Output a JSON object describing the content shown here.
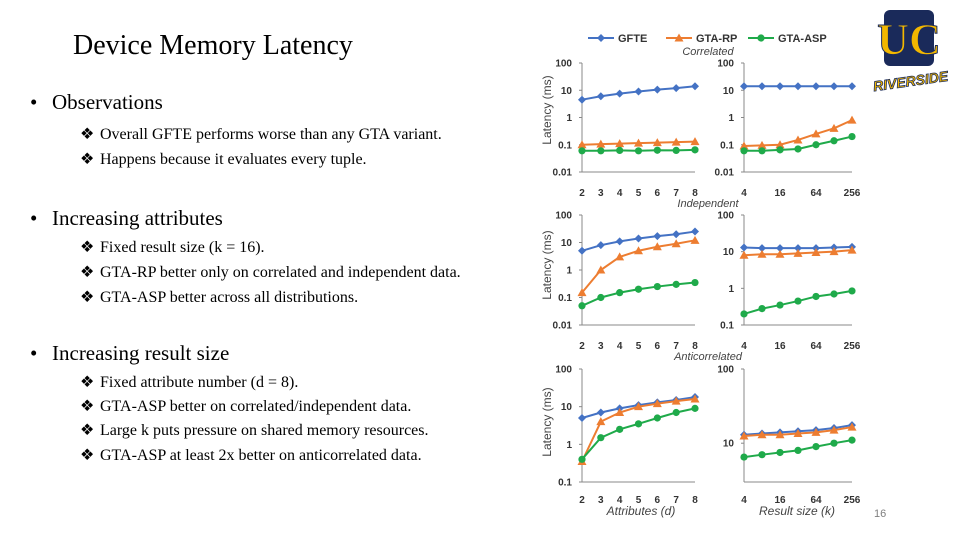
{
  "slide": {
    "title": "Device Memory Latency",
    "page_number": "16",
    "sections": [
      {
        "heading": "Observations",
        "items": [
          "Overall GFTE performs worse than any GTA variant.",
          "Happens because it evaluates every tuple."
        ]
      },
      {
        "heading": "Increasing attributes",
        "items": [
          "Fixed result size (k = 16).",
          "GTA-RP better only on correlated and independent data.",
          "GTA-ASP better across all distributions."
        ]
      },
      {
        "heading": "Increasing result size",
        "items": [
          "Fixed attribute number (d = 8).",
          "GTA-ASP better on correlated/independent data.",
          "Large k puts pressure on shared memory resources.",
          "GTA-ASP at least 2x better on anticorrelated data."
        ]
      }
    ]
  },
  "logo": {
    "letters": "UC",
    "text": "RIVERSIDE"
  },
  "colors": {
    "GFTE": "#4472c4",
    "GTA-RP": "#ed7d31",
    "GTA-ASP": "#1faa4a"
  },
  "chart_data": {
    "legend": [
      "GFTE",
      "GTA-RP",
      "GTA-ASP"
    ],
    "ylabel": "Latency (ms)",
    "row_labels": [
      "Correlated",
      "Independent",
      "Anticorrelated"
    ],
    "xlabel_left": "Attributes (d)",
    "xlabel_right": "Result size (k)",
    "left_x": [
      "2",
      "3",
      "4",
      "5",
      "6",
      "7",
      "8"
    ],
    "right_x": [
      "4",
      "8",
      "16",
      "32",
      "64",
      "128",
      "256"
    ],
    "right_ticks": [
      "4",
      "16",
      "64",
      "256"
    ],
    "charts": [
      {
        "id": "corr-attr",
        "type": "line",
        "yticks": [
          "100",
          "10",
          "1",
          "0.1",
          "0.01"
        ],
        "ylim": [
          0.01,
          100
        ],
        "xcats": "left",
        "series": [
          {
            "name": "GFTE",
            "values": [
              4.5,
              6,
              7.5,
              9,
              10.5,
              12,
              14
            ]
          },
          {
            "name": "GTA-RP",
            "values": [
              0.1,
              0.105,
              0.11,
              0.115,
              0.12,
              0.125,
              0.13
            ]
          },
          {
            "name": "GTA-ASP",
            "values": [
              0.06,
              0.06,
              0.062,
              0.06,
              0.063,
              0.062,
              0.065
            ]
          }
        ]
      },
      {
        "id": "corr-size",
        "type": "line",
        "yticks": [
          "100",
          "10",
          "1",
          "0.1",
          "0.01"
        ],
        "ylim": [
          0.01,
          100
        ],
        "xcats": "right",
        "series": [
          {
            "name": "GFTE",
            "values": [
              14,
              14,
              14,
              14,
              14,
              14,
              14
            ]
          },
          {
            "name": "GTA-RP",
            "values": [
              0.09,
              0.095,
              0.1,
              0.15,
              0.25,
              0.4,
              0.8
            ]
          },
          {
            "name": "GTA-ASP",
            "values": [
              0.06,
              0.06,
              0.065,
              0.07,
              0.1,
              0.14,
              0.2
            ]
          }
        ]
      },
      {
        "id": "ind-attr",
        "type": "line",
        "yticks": [
          "100",
          "10",
          "1",
          "0.1",
          "0.01"
        ],
        "ylim": [
          0.01,
          100
        ],
        "xcats": "left",
        "series": [
          {
            "name": "GFTE",
            "values": [
              5,
              8,
              11,
              14,
              17,
              20,
              25
            ]
          },
          {
            "name": "GTA-RP",
            "values": [
              0.15,
              1,
              3,
              5,
              7,
              9,
              12
            ]
          },
          {
            "name": "GTA-ASP",
            "values": [
              0.05,
              0.1,
              0.15,
              0.2,
              0.25,
              0.3,
              0.35
            ]
          }
        ]
      },
      {
        "id": "ind-size",
        "type": "line",
        "yticks": [
          "100",
          "10",
          "1",
          "0.1"
        ],
        "ylim": [
          0.1,
          100
        ],
        "xcats": "right",
        "series": [
          {
            "name": "GFTE",
            "values": [
              13,
              12.5,
              12.5,
              12.5,
              12.5,
              13,
              13.5
            ]
          },
          {
            "name": "GTA-RP",
            "values": [
              8,
              8.5,
              8.5,
              9,
              9.5,
              10,
              11
            ]
          },
          {
            "name": "GTA-ASP",
            "values": [
              0.2,
              0.28,
              0.35,
              0.45,
              0.6,
              0.7,
              0.85
            ]
          }
        ]
      },
      {
        "id": "anti-attr",
        "type": "line",
        "yticks": [
          "100",
          "10",
          "1",
          "0.1"
        ],
        "ylim": [
          0.1,
          100
        ],
        "xcats": "left",
        "series": [
          {
            "name": "GFTE",
            "values": [
              5,
              7,
              9,
              11,
              13,
              15,
              18
            ]
          },
          {
            "name": "GTA-RP",
            "values": [
              0.35,
              4,
              7,
              10,
              12,
              14,
              16
            ]
          },
          {
            "name": "GTA-ASP",
            "values": [
              0.4,
              1.5,
              2.5,
              3.5,
              5,
              7,
              9
            ]
          }
        ]
      },
      {
        "id": "anti-size",
        "type": "line",
        "yticks": [
          "100",
          "10"
        ],
        "ylim": [
          3,
          100
        ],
        "xcats": "right",
        "series": [
          {
            "name": "GFTE",
            "values": [
              13,
              13.5,
              14,
              14.5,
              15,
              16,
              17.5
            ]
          },
          {
            "name": "GTA-RP",
            "values": [
              12.5,
              13,
              13,
              13.5,
              14,
              15,
              16.5
            ]
          },
          {
            "name": "GTA-ASP",
            "values": [
              6.5,
              7,
              7.5,
              8,
              9,
              10,
              11
            ]
          }
        ]
      }
    ]
  }
}
